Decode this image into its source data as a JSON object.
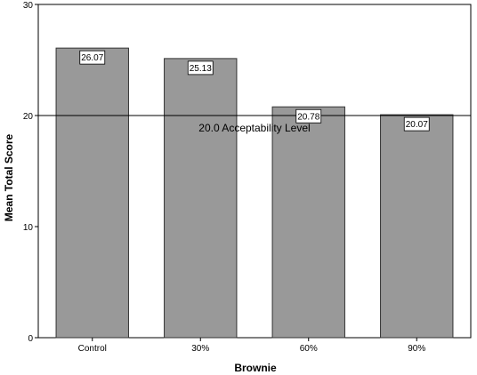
{
  "chart_data": {
    "type": "bar",
    "categories": [
      "Control",
      "30%",
      "60%",
      "90%"
    ],
    "values": [
      26.07,
      25.13,
      20.78,
      20.07
    ],
    "data_labels": [
      "26.07",
      "25.13",
      "20.78",
      "20.07"
    ],
    "title": "",
    "xlabel": "Brownie",
    "ylabel": "Mean Total Score",
    "ylim": [
      0,
      30
    ],
    "yticks": [
      "0",
      "10",
      "20",
      "30"
    ],
    "grid": false,
    "reference_line": {
      "value": 20.0,
      "label": "20.0 Acceptability Level"
    },
    "colors": {
      "bar_fill": "#999999",
      "bar_stroke": "#333333",
      "plot_border": "#000000",
      "reference_line": "#000000"
    }
  }
}
